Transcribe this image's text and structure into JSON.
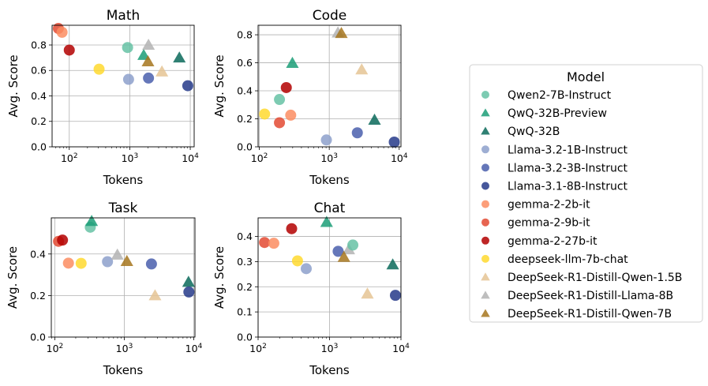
{
  "legend": {
    "title": "Model",
    "placement": "right",
    "models": [
      {
        "name": "Qwen2-7B-Instruct",
        "color": "#66c2a5",
        "marker": "circle"
      },
      {
        "name": "QwQ-32B-Preview",
        "color": "#1b9e77",
        "marker": "triangle"
      },
      {
        "name": "QwQ-32B",
        "color": "#0b6a5a",
        "marker": "triangle"
      },
      {
        "name": "Llama-3.2-1B-Instruct",
        "color": "#8da0cb",
        "marker": "circle"
      },
      {
        "name": "Llama-3.2-3B-Instruct",
        "color": "#4a5fad",
        "marker": "circle"
      },
      {
        "name": "Llama-3.1-8B-Instruct",
        "color": "#263a8a",
        "marker": "circle"
      },
      {
        "name": "gemma-2-2b-it",
        "color": "#fc8d62",
        "marker": "circle"
      },
      {
        "name": "gemma-2-9b-it",
        "color": "#e34a33",
        "marker": "circle"
      },
      {
        "name": "gemma-2-27b-it",
        "color": "#b30000",
        "marker": "circle"
      },
      {
        "name": "deepseek-llm-7b-chat",
        "color": "#ffd92f",
        "marker": "circle"
      },
      {
        "name": "DeepSeek-R1-Distill-Qwen-1.5B",
        "color": "#e5c494",
        "marker": "triangle"
      },
      {
        "name": "DeepSeek-R1-Distill-Llama-8B",
        "color": "#b3b3b3",
        "marker": "triangle"
      },
      {
        "name": "DeepSeek-R1-Distill-Qwen-7B",
        "color": "#a6761d",
        "marker": "triangle"
      }
    ]
  },
  "chart_data": [
    {
      "type": "scatter",
      "title": "Math",
      "xlabel": "Tokens",
      "ylabel": "Avg. Score",
      "xscale": "log",
      "xlim": [
        52,
        11600
      ],
      "ylim": [
        0,
        0.955
      ],
      "grid": true,
      "xticks": [
        100,
        1000,
        10000
      ],
      "xtick_labels": [
        "10^2",
        "10^3",
        "10^4"
      ],
      "yticks": [
        0,
        0.2,
        0.4,
        0.6,
        0.8
      ],
      "ytick_labels": [
        "0.0",
        "0.2",
        "0.4",
        "0.6",
        "0.8"
      ],
      "points": [
        {
          "model": "gemma-2-9b-it",
          "x": 66,
          "y": 0.93
        },
        {
          "model": "gemma-2-2b-it",
          "x": 76,
          "y": 0.9
        },
        {
          "model": "gemma-2-27b-it",
          "x": 100,
          "y": 0.76
        },
        {
          "model": "deepseek-llm-7b-chat",
          "x": 311,
          "y": 0.61
        },
        {
          "model": "Qwen2-7B-Instruct",
          "x": 920,
          "y": 0.78
        },
        {
          "model": "Llama-3.2-1B-Instruct",
          "x": 955,
          "y": 0.53
        },
        {
          "model": "QwQ-32B-Preview",
          "x": 1700,
          "y": 0.72
        },
        {
          "model": "DeepSeek-R1-Distill-Llama-8B",
          "x": 2040,
          "y": 0.8
        },
        {
          "model": "DeepSeek-R1-Distill-Qwen-7B",
          "x": 2000,
          "y": 0.67
        },
        {
          "model": "Llama-3.2-3B-Instruct",
          "x": 2040,
          "y": 0.54
        },
        {
          "model": "DeepSeek-R1-Distill-Qwen-1.5B",
          "x": 3400,
          "y": 0.59
        },
        {
          "model": "QwQ-32B",
          "x": 6600,
          "y": 0.7
        },
        {
          "model": "Llama-3.1-8B-Instruct",
          "x": 9100,
          "y": 0.48
        }
      ]
    },
    {
      "type": "scatter",
      "title": "Code",
      "xlabel": "Tokens",
      "ylabel": "Avg. Score",
      "xscale": "log",
      "xlim": [
        96,
        10600
      ],
      "ylim": [
        0,
        0.868
      ],
      "grid": true,
      "xticks": [
        100,
        1000,
        10000
      ],
      "xtick_labels": [
        "10^2",
        "10^3",
        "10^4"
      ],
      "yticks": [
        0,
        0.2,
        0.4,
        0.6,
        0.8
      ],
      "ytick_labels": [
        "0.0",
        "0.2",
        "0.4",
        "0.6",
        "0.8"
      ],
      "points": [
        {
          "model": "deepseek-llm-7b-chat",
          "x": 119,
          "y": 0.234
        },
        {
          "model": "Qwen2-7B-Instruct",
          "x": 194,
          "y": 0.338
        },
        {
          "model": "gemma-2-9b-it",
          "x": 194,
          "y": 0.172
        },
        {
          "model": "gemma-2-2b-it",
          "x": 281,
          "y": 0.226
        },
        {
          "model": "gemma-2-27b-it",
          "x": 243,
          "y": 0.423
        },
        {
          "model": "QwQ-32B-Preview",
          "x": 297,
          "y": 0.598
        },
        {
          "model": "Llama-3.2-1B-Instruct",
          "x": 910,
          "y": 0.049
        },
        {
          "model": "DeepSeek-R1-Distill-Llama-8B",
          "x": 1330,
          "y": 0.815
        },
        {
          "model": "DeepSeek-R1-Distill-Qwen-7B",
          "x": 1490,
          "y": 0.811
        },
        {
          "model": "DeepSeek-R1-Distill-Qwen-1.5B",
          "x": 2910,
          "y": 0.551
        },
        {
          "model": "Llama-3.2-3B-Instruct",
          "x": 2520,
          "y": 0.1
        },
        {
          "model": "QwQ-32B",
          "x": 4440,
          "y": 0.192
        },
        {
          "model": "Llama-3.1-8B-Instruct",
          "x": 8500,
          "y": 0.034
        }
      ]
    },
    {
      "type": "scatter",
      "title": "Task",
      "xlabel": "Tokens",
      "ylabel": "Avg. Score",
      "xscale": "log",
      "xlim": [
        89,
        10400
      ],
      "ylim": [
        0,
        0.574
      ],
      "grid": true,
      "xticks": [
        100,
        1000,
        10000
      ],
      "xtick_labels": [
        "10^2",
        "10^3",
        "10^4"
      ],
      "yticks": [
        0,
        0.2,
        0.4
      ],
      "ytick_labels": [
        "0.0",
        "0.2",
        "0.4"
      ],
      "points": [
        {
          "model": "gemma-2-9b-it",
          "x": 113,
          "y": 0.461
        },
        {
          "model": "gemma-2-27b-it",
          "x": 129,
          "y": 0.467
        },
        {
          "model": "Qwen2-7B-Instruct",
          "x": 324,
          "y": 0.529
        },
        {
          "model": "QwQ-32B-Preview",
          "x": 339,
          "y": 0.558
        },
        {
          "model": "gemma-2-2b-it",
          "x": 157,
          "y": 0.356
        },
        {
          "model": "deepseek-llm-7b-chat",
          "x": 239,
          "y": 0.355
        },
        {
          "model": "Llama-3.2-1B-Instruct",
          "x": 573,
          "y": 0.363
        },
        {
          "model": "DeepSeek-R1-Distill-Llama-8B",
          "x": 795,
          "y": 0.396
        },
        {
          "model": "DeepSeek-R1-Distill-Qwen-7B",
          "x": 1090,
          "y": 0.365
        },
        {
          "model": "Llama-3.2-3B-Instruct",
          "x": 2460,
          "y": 0.352
        },
        {
          "model": "DeepSeek-R1-Distill-Qwen-1.5B",
          "x": 2770,
          "y": 0.2
        },
        {
          "model": "QwQ-32B",
          "x": 8400,
          "y": 0.265
        },
        {
          "model": "Llama-3.1-8B-Instruct",
          "x": 8500,
          "y": 0.217
        }
      ]
    },
    {
      "type": "scatter",
      "title": "Chat",
      "xlabel": "Tokens",
      "ylabel": "Avg. Score",
      "xscale": "log",
      "xlim": [
        100,
        10000
      ],
      "ylim": [
        0,
        0.474
      ],
      "grid": true,
      "xticks": [
        100,
        1000,
        10000
      ],
      "xtick_labels": [
        "10^2",
        "10^3",
        "10^4"
      ],
      "yticks": [
        0,
        0.1,
        0.2,
        0.3,
        0.4
      ],
      "ytick_labels": [
        "0.0",
        "0.1",
        "0.2",
        "0.3",
        "0.4"
      ],
      "points": [
        {
          "model": "gemma-2-9b-it",
          "x": 123,
          "y": 0.376
        },
        {
          "model": "gemma-2-2b-it",
          "x": 166,
          "y": 0.373
        },
        {
          "model": "gemma-2-27b-it",
          "x": 295,
          "y": 0.431
        },
        {
          "model": "deepseek-llm-7b-chat",
          "x": 356,
          "y": 0.303
        },
        {
          "model": "Llama-3.2-1B-Instruct",
          "x": 472,
          "y": 0.272
        },
        {
          "model": "QwQ-32B-Preview",
          "x": 910,
          "y": 0.457
        },
        {
          "model": "Llama-3.2-3B-Instruct",
          "x": 1320,
          "y": 0.341
        },
        {
          "model": "DeepSeek-R1-Distill-Llama-8B",
          "x": 1860,
          "y": 0.348
        },
        {
          "model": "Qwen2-7B-Instruct",
          "x": 2120,
          "y": 0.366
        },
        {
          "model": "DeepSeek-R1-Distill-Qwen-7B",
          "x": 1590,
          "y": 0.318
        },
        {
          "model": "DeepSeek-R1-Distill-Qwen-1.5B",
          "x": 3390,
          "y": 0.172
        },
        {
          "model": "QwQ-32B",
          "x": 7670,
          "y": 0.288
        },
        {
          "model": "Llama-3.1-8B-Instruct",
          "x": 8360,
          "y": 0.166
        }
      ]
    }
  ]
}
